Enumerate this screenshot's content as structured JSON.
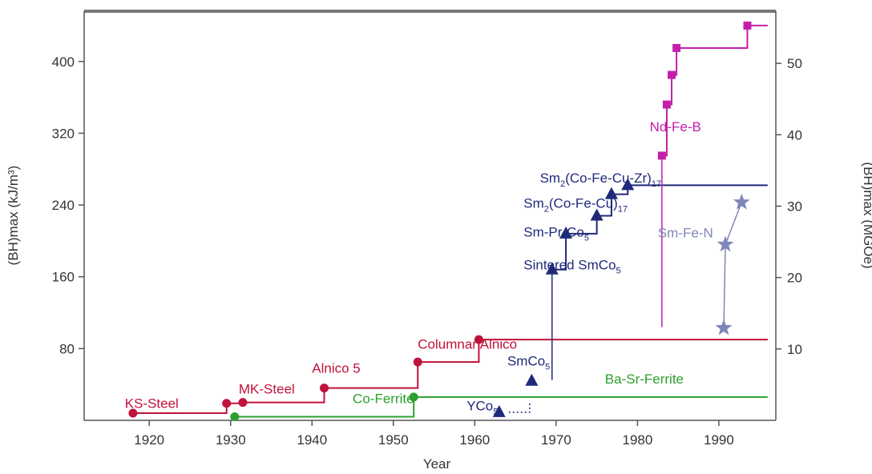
{
  "chart_data": {
    "type": "line",
    "xlabel": "Year",
    "ylabel_left": "(BH)max (kJ/m³)",
    "ylabel_right": "(BH)max (MGOe)",
    "xlim": [
      1912,
      1997
    ],
    "ylim": [
      0,
      456
    ],
    "ylim_right_units": "MGOe",
    "x_ticks": [
      1920,
      1930,
      1940,
      1950,
      1960,
      1970,
      1980,
      1990
    ],
    "y_ticks_left": [
      80,
      160,
      240,
      320,
      400
    ],
    "y_ticks_right": [
      10,
      20,
      30,
      40,
      50
    ],
    "grid": false,
    "colors": {
      "steel": "#c0123a",
      "ferrite": "#2ca02c",
      "sm_co": "#1f2a7a",
      "nd_fe_b": "#c21fa8",
      "sm_fe_n": "#7f86b8",
      "axis": "#555555",
      "frame_top": "#777777",
      "text": "#333333"
    },
    "series": [
      {
        "name_parts": [
          "Alnico"
        ],
        "color": "steel",
        "marker": "circle",
        "points": [
          [
            1918,
            8
          ],
          [
            1929.5,
            19
          ],
          [
            1931.5,
            20
          ],
          [
            1941.5,
            36
          ],
          [
            1953,
            65
          ],
          [
            1960.5,
            90
          ]
        ],
        "step_end_x": 1996,
        "labels": [
          {
            "text": "KS-Steel",
            "x": 1917,
            "y": 14
          },
          {
            "text": "MK-Steel",
            "x": 1931,
            "y": 30
          },
          {
            "text": "Alnico 5",
            "x": 1940,
            "y": 53
          },
          {
            "text": "Columnar Alnico",
            "x": 1953,
            "y": 80
          }
        ]
      },
      {
        "name_parts": [
          "Ferrite"
        ],
        "color": "ferrite",
        "marker": "circle",
        "points": [
          [
            1930.5,
            4
          ],
          [
            1952.5,
            26
          ]
        ],
        "step_end_x": 1996,
        "labels": [
          {
            "text": "Co-Ferrite",
            "x": 1945,
            "y": 19
          },
          {
            "text": "Ba-Sr-Ferrite",
            "x": 1976,
            "y": 41
          }
        ]
      },
      {
        "name_parts": [
          "YCo",
          "5"
        ],
        "color": "sm_co",
        "marker": "triangle",
        "points": [
          [
            1963,
            9
          ]
        ],
        "labels": [
          {
            "text_parts": [
              "YCo",
              "5"
            ],
            "x": 1959,
            "y": 11
          }
        ]
      },
      {
        "name_parts": [
          "SmCo",
          "5"
        ],
        "color": "sm_co",
        "marker": "triangle",
        "points": [
          [
            1967,
            44
          ]
        ],
        "labels": [
          {
            "text_parts": [
              "SmCo",
              "5"
            ],
            "x": 1964,
            "y": 61
          }
        ]
      },
      {
        "name_parts": [
          "Sm-Co"
        ],
        "color": "sm_co",
        "marker": "triangle",
        "points": [
          [
            1969.5,
            168
          ],
          [
            1971.2,
            208
          ],
          [
            1975,
            228
          ],
          [
            1976.8,
            252
          ],
          [
            1978.8,
            262
          ]
        ],
        "step_end_x": 1996,
        "vline_from_y": 45,
        "labels": [
          {
            "text_parts": [
              "Sintered SmCo",
              "5"
            ],
            "x": 1966,
            "y": 168
          },
          {
            "text_parts": [
              "Sm-Pr-Co",
              "5"
            ],
            "x": 1966,
            "y": 205
          },
          {
            "text_parts": [
              "Sm",
              "2",
              "(Co-Fe-Cu)",
              "17"
            ],
            "x": 1966,
            "y": 237
          },
          {
            "text_parts": [
              "Sm",
              "2",
              "(Co-Fe-Cu-Zr)",
              "17"
            ],
            "x": 1968,
            "y": 265
          }
        ]
      },
      {
        "name_parts": [
          "Nd-Fe-B"
        ],
        "color": "nd_fe_b",
        "marker": "square",
        "points": [
          [
            1983,
            295
          ],
          [
            1983.6,
            352
          ],
          [
            1984.2,
            385
          ],
          [
            1984.8,
            415
          ],
          [
            1993.5,
            440
          ]
        ],
        "step_end_x": 1996,
        "vline_from_y": 104,
        "labels": [
          {
            "text": "Nd-Fe-B",
            "x": 1981.5,
            "y": 322
          }
        ]
      },
      {
        "name_parts": [
          "Sm-Fe-N"
        ],
        "color": "sm_fe_n",
        "marker": "star",
        "points": [
          [
            1990.6,
            103
          ],
          [
            1990.8,
            196
          ],
          [
            1992.8,
            243
          ]
        ],
        "vline_from_y": 103,
        "labels": [
          {
            "text": "Sm-Fe-N",
            "x": 1982.5,
            "y": 204
          }
        ]
      }
    ]
  }
}
